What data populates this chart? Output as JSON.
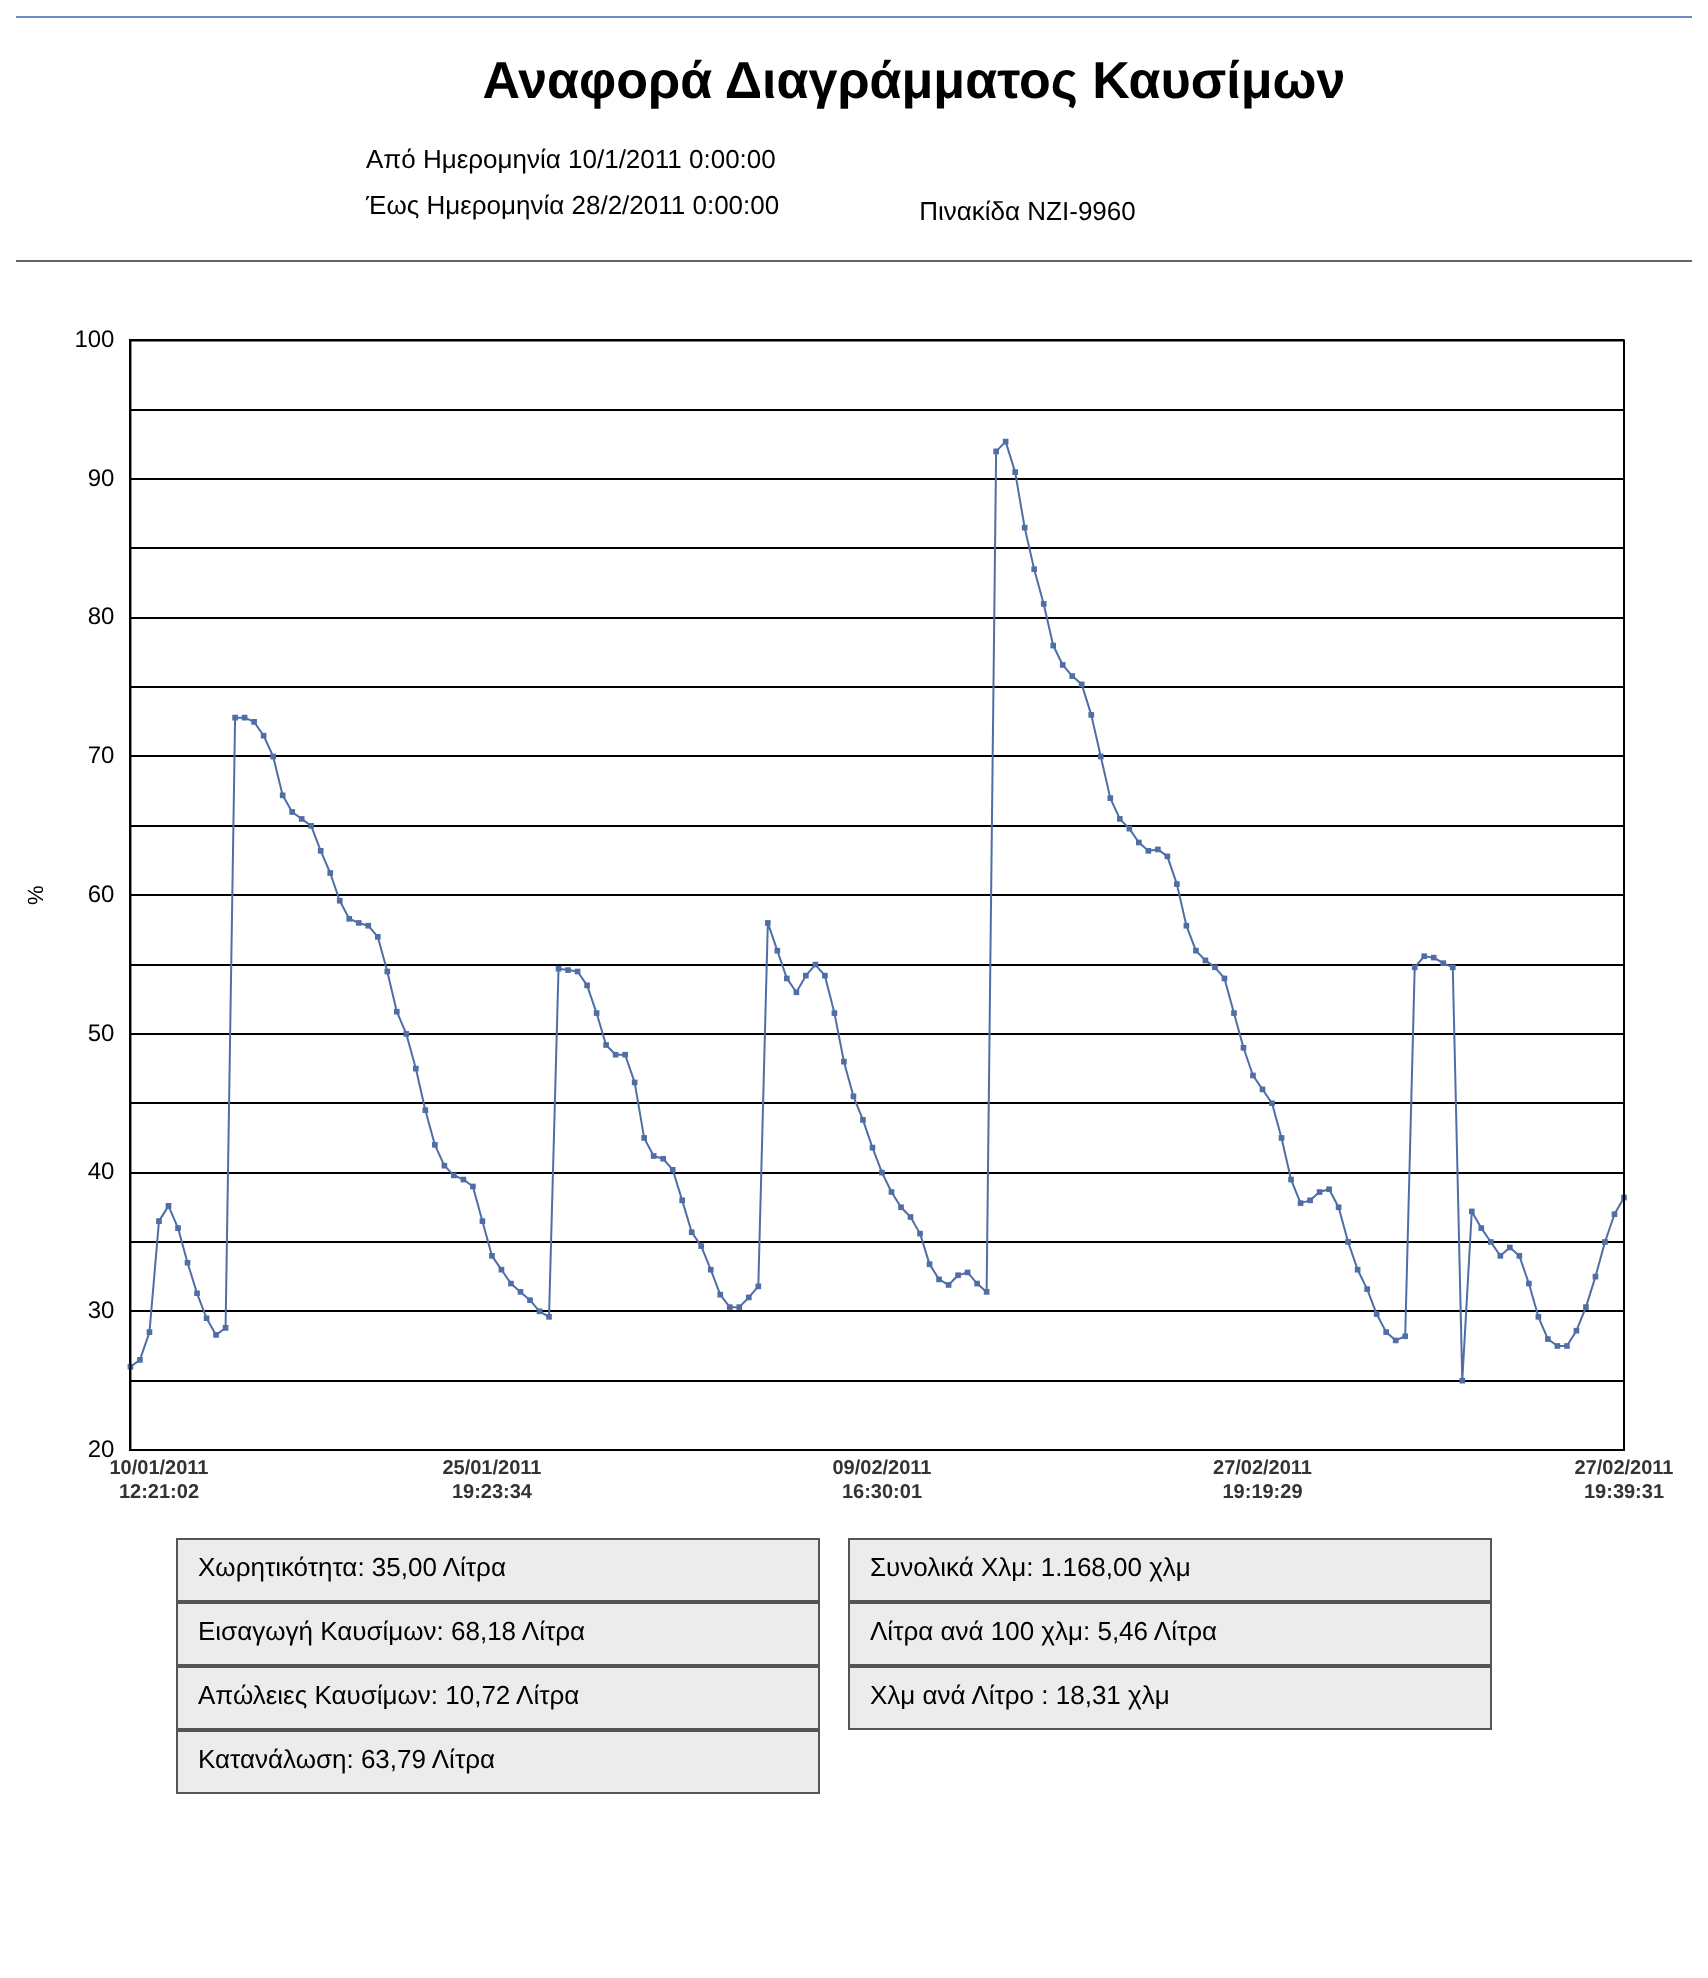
{
  "chart_data": {
    "type": "line",
    "title": "Αναφορά Διαγράμματος Καυσίμων",
    "ylabel": "%",
    "categories": [
      null,
      null,
      null,
      "10/01/2011 12:21:02",
      null,
      null,
      null,
      null,
      null,
      null,
      null,
      null,
      null,
      null,
      null,
      null,
      null,
      null,
      null,
      null,
      null,
      null,
      null,
      null,
      null,
      null,
      null,
      null,
      null,
      null,
      null,
      null,
      null,
      null,
      null,
      null,
      null,
      null,
      "25/01/2011 19:23:34",
      null,
      null,
      null,
      null,
      null,
      null,
      null,
      null,
      null,
      null,
      null,
      null,
      null,
      null,
      null,
      null,
      null,
      null,
      null,
      null,
      null,
      null,
      null,
      null,
      null,
      null,
      null,
      null,
      null,
      null,
      null,
      null,
      null,
      null,
      null,
      null,
      null,
      null,
      null,
      null,
      "09/02/2011 16:30:01",
      null,
      null,
      null,
      null,
      null,
      null,
      null,
      null,
      null,
      null,
      null,
      null,
      null,
      null,
      null,
      null,
      null,
      null,
      null,
      null,
      null,
      null,
      null,
      null,
      null,
      null,
      null,
      null,
      null,
      null,
      null,
      null,
      null,
      null,
      null,
      null,
      null,
      null,
      null,
      "27/02/2011 19:19:29",
      null,
      null,
      null,
      null,
      null,
      null,
      null,
      null,
      null,
      null,
      null,
      null,
      null,
      null,
      null,
      null,
      null,
      null,
      null,
      null,
      null,
      null,
      null,
      null,
      null,
      null,
      null,
      null,
      null,
      null,
      null,
      null,
      null,
      null,
      null,
      null,
      null,
      "27/02/2011 19:39:31"
    ],
    "series": [
      {
        "color": "#4f6ea6",
        "values": [
          26,
          26.5,
          28.5,
          36.5,
          37.6,
          36,
          33.5,
          31.3,
          29.5,
          28.3,
          28.8,
          72.8,
          72.8,
          72.5,
          71.5,
          70,
          67.2,
          66,
          65.5,
          65,
          63.2,
          61.6,
          59.6,
          58.3,
          58,
          57.8,
          57,
          54.5,
          51.6,
          50,
          47.5,
          44.5,
          42,
          40.5,
          39.8,
          39.5,
          39,
          36.5,
          34,
          33,
          32,
          31.4,
          30.8,
          30,
          29.6,
          54.7,
          54.6,
          54.5,
          53.5,
          51.5,
          49.2,
          48.5,
          48.5,
          46.5,
          42.5,
          41.2,
          41,
          40.2,
          38,
          35.7,
          34.7,
          33,
          31.2,
          30.3,
          30.3,
          31,
          31.8,
          58,
          56,
          54,
          53,
          54.2,
          55,
          54.2,
          51.5,
          48,
          45.5,
          43.8,
          41.8,
          40,
          38.6,
          37.5,
          36.8,
          35.6,
          33.4,
          32.3,
          31.9,
          32.6,
          32.8,
          32,
          31.4,
          92,
          92.7,
          90.5,
          86.5,
          83.5,
          81,
          78,
          76.6,
          75.8,
          75.2,
          73,
          70,
          67,
          65.5,
          64.8,
          63.8,
          63.2,
          63.3,
          62.8,
          60.8,
          57.8,
          56,
          55.3,
          54.8,
          54,
          51.5,
          49,
          47,
          46,
          45,
          42.5,
          39.5,
          37.8,
          38,
          38.6,
          38.8,
          37.5,
          35,
          33,
          31.6,
          29.8,
          28.5,
          27.9,
          28.2,
          54.8,
          55.6,
          55.5,
          55.1,
          54.8,
          25,
          37.2,
          36,
          35,
          34,
          34.6,
          34,
          32,
          29.6,
          28,
          27.5,
          27.5,
          28.6,
          30.3,
          32.5,
          35,
          37,
          38.2
        ]
      }
    ],
    "ylim": [
      20,
      100
    ],
    "yticks": [
      20,
      {
        "value": 25,
        "label": null
      },
      30,
      {
        "value": 35,
        "label": null
      },
      40,
      {
        "value": 45,
        "label": null
      },
      50,
      {
        "value": 55,
        "label": null
      },
      60,
      {
        "value": 65,
        "label": null
      },
      70,
      {
        "value": 75,
        "label": null
      },
      80,
      {
        "value": 85,
        "label": null
      },
      90,
      {
        "value": 95,
        "label": null
      },
      100
    ],
    "grid": "y",
    "legend": false,
    "marker": "square",
    "line_style": "solid",
    "annotations": [
      "Από Ημερομηνία 10/1/2011 0:00:00",
      "Έως Ημερομηνία 28/2/2011 0:00:00",
      "Πινακίδα NZI-9960",
      "Χωρητικότητα: 35,00 Λίτρα",
      "Εισαγωγή Καυσίμων: 68,18 Λίτρα",
      "Απώλειες Καυσίμων: 10,72 Λίτρα",
      "Κατανάλωση: 63,79 Λίτρα",
      "Συνολικά Χλμ: 1.168,00 χλμ",
      "Λίτρα ανά 100 χλμ: 5,46 Λίτρα",
      "Χλμ ανά Λίτρο : 18,31 χλμ"
    ]
  }
}
